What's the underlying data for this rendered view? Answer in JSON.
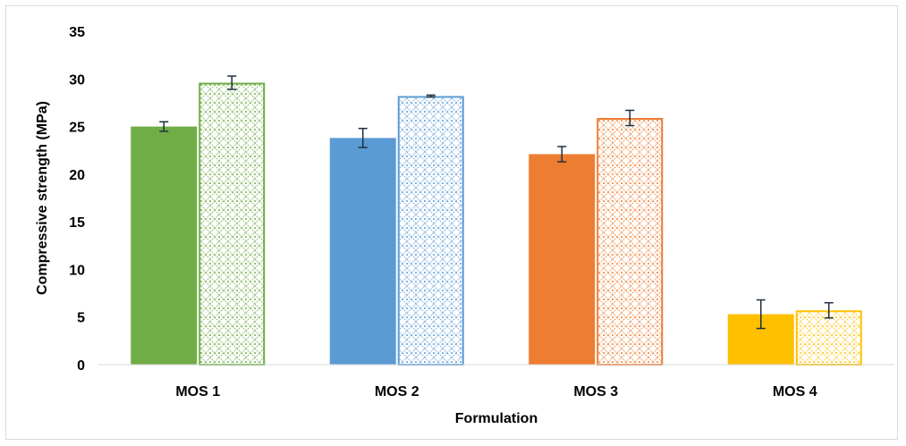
{
  "chart_data": {
    "type": "bar",
    "title": "",
    "xlabel": "Formulation",
    "ylabel": "Compressive strength (MPa)",
    "ylim": [
      0,
      35
    ],
    "yticks": [
      0,
      5,
      10,
      15,
      20,
      25,
      30,
      35
    ],
    "categories": [
      "MOS 1",
      "MOS 2",
      "MOS 3",
      "MOS 4"
    ],
    "grid": false,
    "legend": "none",
    "colors": [
      "#70ad47",
      "#5b9bd5",
      "#ed7d31",
      "#ffc000"
    ],
    "series": [
      {
        "style": "solid",
        "values": [
          25.0,
          23.8,
          22.1,
          5.3
        ],
        "errors": [
          0.5,
          1.0,
          0.8,
          1.5
        ]
      },
      {
        "style": "patterned",
        "values": [
          29.6,
          28.2,
          25.9,
          5.7
        ],
        "errors": [
          0.7,
          0.1,
          0.8,
          0.8
        ]
      }
    ]
  }
}
